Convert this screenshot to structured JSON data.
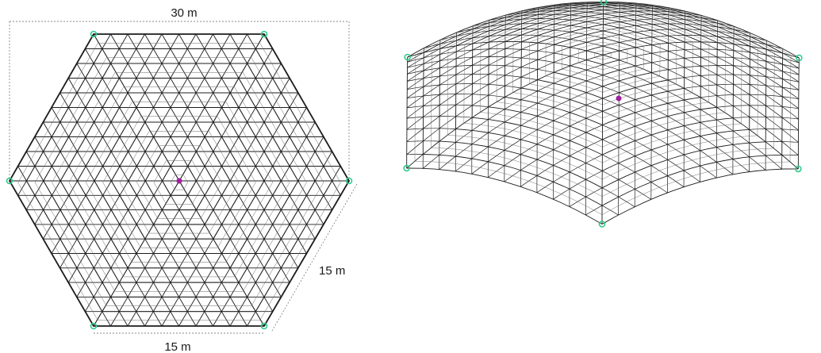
{
  "plan_view": {
    "dimensions": {
      "width_label": "30 m",
      "side_label": "15 m",
      "bottom_label": "15 m"
    },
    "support_count": 6,
    "grid_subdivisions": 10
  },
  "perspective_view": {
    "support_count": 6
  },
  "colors": {
    "member": "#1c1c1c",
    "member_light": "#6a6a6a",
    "support": "#2ecc8a",
    "center_node": "#a020a0",
    "dimension_line": "#8a8a8a",
    "background": "#ffffff"
  }
}
